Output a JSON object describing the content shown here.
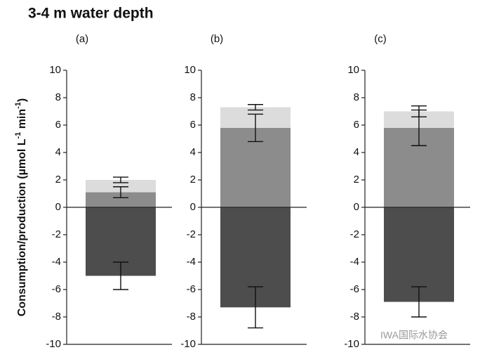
{
  "title": "3-4 m water depth",
  "ylabel": [
    "Consumption/production (µmol L",
    "-1",
    " min",
    "-1",
    ")"
  ],
  "watermark": "IWA国际水协会",
  "chart_data": [
    {
      "type": "bar",
      "stacked": true,
      "subtitle": "(a)",
      "ylim": [
        -10,
        10
      ],
      "yticks": [
        -10,
        -8,
        -6,
        -4,
        -2,
        0,
        2,
        4,
        6,
        8,
        10
      ],
      "series": [
        {
          "color": "#8c8c8c",
          "values": [
            1.1
          ],
          "errors": [
            0.4
          ]
        },
        {
          "color": "#dcdcdc",
          "values": [
            0.9
          ],
          "errors": [
            0.2
          ]
        },
        {
          "color": "#4d4d4d",
          "values": [
            -5
          ],
          "errors": [
            1
          ]
        }
      ]
    },
    {
      "type": "bar",
      "stacked": true,
      "subtitle": "(b)",
      "ylim": [
        -10,
        10
      ],
      "yticks": [
        -10,
        -8,
        -6,
        -4,
        -2,
        0,
        2,
        4,
        6,
        8,
        10
      ],
      "series": [
        {
          "color": "#8c8c8c",
          "values": [
            5.8
          ],
          "errors": [
            1.0
          ]
        },
        {
          "color": "#dcdcdc",
          "values": [
            1.5
          ],
          "errors": [
            0.2
          ]
        },
        {
          "color": "#4d4d4d",
          "values": [
            -7.3
          ],
          "errors": [
            1.5
          ]
        }
      ]
    },
    {
      "type": "bar",
      "stacked": true,
      "subtitle": "(c)",
      "ylim": [
        -10,
        10
      ],
      "yticks": [
        -10,
        -8,
        -6,
        -4,
        -2,
        0,
        2,
        4,
        6,
        8,
        10
      ],
      "series": [
        {
          "color": "#8c8c8c",
          "values": [
            5.8
          ],
          "errors": [
            1.3
          ]
        },
        {
          "color": "#dcdcdc",
          "values": [
            1.2
          ],
          "errors": [
            0.4
          ]
        },
        {
          "color": "#4d4d4d",
          "values": [
            -6.9
          ],
          "errors": [
            1.1
          ]
        }
      ]
    }
  ]
}
